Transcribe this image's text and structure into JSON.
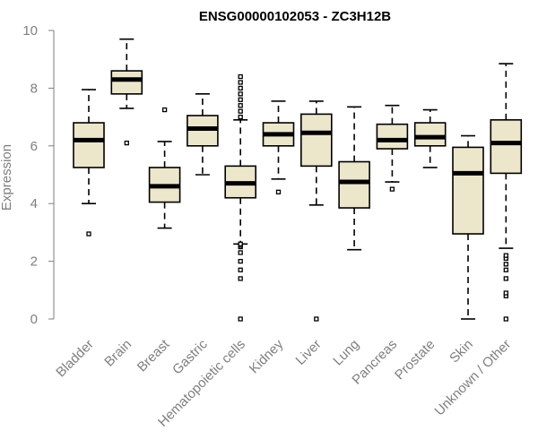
{
  "chart_data": {
    "type": "boxplot",
    "title": "ENSG00000102053 - ZC3H12B",
    "xlabel": "",
    "ylabel": "Expression",
    "ylim": [
      0,
      10
    ],
    "yticks": [
      0,
      2,
      4,
      6,
      8,
      10
    ],
    "colors": {
      "box_fill": "#ece6cb",
      "stroke": "#000000",
      "axis": "#7f7f7f",
      "tick_text": "#7f7f7f"
    },
    "categories": [
      "Bladder",
      "Brain",
      "Breast",
      "Gastric",
      "Hematopoietic cells",
      "Kidney",
      "Liver",
      "Lung",
      "Pancreas",
      "Prostate",
      "Skin",
      "Unknown / Other"
    ],
    "boxes": [
      {
        "label": "Bladder",
        "whisker_low": 4.0,
        "q1": 5.25,
        "median": 6.2,
        "q3": 6.8,
        "whisker_high": 7.95,
        "outliers": [
          2.95
        ]
      },
      {
        "label": "Brain",
        "whisker_low": 7.3,
        "q1": 7.8,
        "median": 8.3,
        "q3": 8.6,
        "whisker_high": 9.7,
        "outliers": [
          6.1
        ]
      },
      {
        "label": "Breast",
        "whisker_low": 3.15,
        "q1": 4.05,
        "median": 4.6,
        "q3": 5.25,
        "whisker_high": 6.15,
        "outliers": [
          7.25
        ]
      },
      {
        "label": "Gastric",
        "whisker_low": 5.0,
        "q1": 6.0,
        "median": 6.6,
        "q3": 7.05,
        "whisker_high": 7.8,
        "outliers": []
      },
      {
        "label": "Hematopoietic cells",
        "whisker_low": 2.6,
        "q1": 4.2,
        "median": 4.7,
        "q3": 5.3,
        "whisker_high": 6.9,
        "outliers": [
          0.0,
          1.4,
          1.7,
          2.0,
          2.3,
          2.5,
          2.55,
          2.6,
          7.0,
          7.2,
          7.4,
          7.6,
          7.8,
          8.0,
          8.2,
          8.4
        ]
      },
      {
        "label": "Kidney",
        "whisker_low": 4.85,
        "q1": 6.0,
        "median": 6.4,
        "q3": 6.8,
        "whisker_high": 7.55,
        "outliers": [
          4.4
        ]
      },
      {
        "label": "Liver",
        "whisker_low": 3.95,
        "q1": 5.3,
        "median": 6.45,
        "q3": 7.1,
        "whisker_high": 7.55,
        "outliers": [
          0.0
        ]
      },
      {
        "label": "Lung",
        "whisker_low": 2.4,
        "q1": 3.85,
        "median": 4.75,
        "q3": 5.45,
        "whisker_high": 7.35,
        "outliers": []
      },
      {
        "label": "Pancreas",
        "whisker_low": 4.75,
        "q1": 5.9,
        "median": 6.2,
        "q3": 6.75,
        "whisker_high": 7.4,
        "outliers": [
          4.5
        ]
      },
      {
        "label": "Prostate",
        "whisker_low": 5.25,
        "q1": 6.0,
        "median": 6.3,
        "q3": 6.8,
        "whisker_high": 7.25,
        "outliers": []
      },
      {
        "label": "Skin",
        "whisker_low": 0.0,
        "q1": 2.95,
        "median": 5.05,
        "q3": 5.95,
        "whisker_high": 6.35,
        "outliers": []
      },
      {
        "label": "Unknown / Other",
        "whisker_low": 2.45,
        "q1": 5.05,
        "median": 6.1,
        "q3": 6.9,
        "whisker_high": 8.85,
        "outliers": [
          0.0,
          0.8,
          0.9,
          1.4,
          1.7,
          1.9,
          2.1,
          2.2
        ]
      }
    ]
  }
}
